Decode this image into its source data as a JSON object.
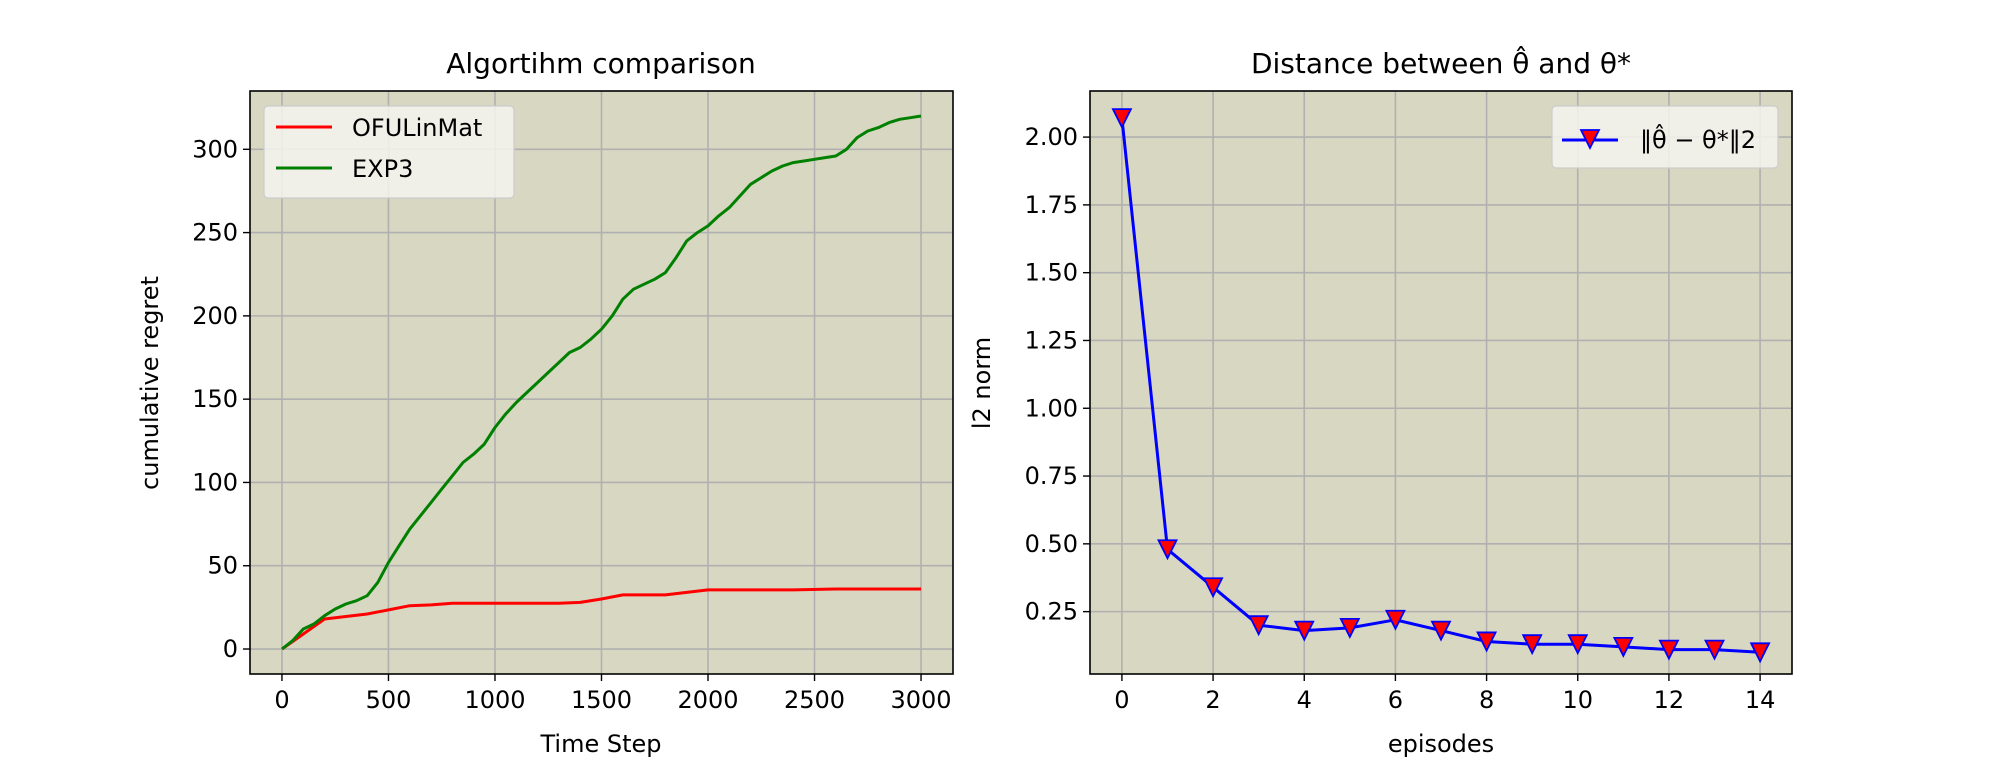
{
  "chart_data": [
    {
      "type": "line",
      "title": "Algortihm comparison",
      "xlabel": "Time Step",
      "ylabel": "cumulative regret",
      "xlim": [
        -150,
        3150
      ],
      "ylim": [
        -15,
        335
      ],
      "xticks": [
        0,
        500,
        1000,
        1500,
        2000,
        2500,
        3000
      ],
      "yticks": [
        0,
        50,
        100,
        150,
        200,
        250,
        300
      ],
      "grid": true,
      "background": "#d8d7c2",
      "legend_position": "upper-left",
      "series": [
        {
          "name": "OFULinMat",
          "color": "#ff0000",
          "x": [
            0,
            100,
            200,
            300,
            400,
            500,
            600,
            700,
            800,
            900,
            1000,
            1100,
            1200,
            1300,
            1400,
            1500,
            1600,
            1700,
            1800,
            1900,
            2000,
            2200,
            2400,
            2600,
            2800,
            3000
          ],
          "y": [
            0,
            9,
            18,
            19.5,
            21,
            23.5,
            26,
            26.5,
            27.5,
            27.5,
            27.5,
            27.5,
            27.5,
            27.5,
            28,
            30,
            32.5,
            32.5,
            32.5,
            34,
            35.5,
            35.5,
            35.5,
            36,
            36,
            36
          ]
        },
        {
          "name": "EXP3",
          "color": "#008000",
          "x": [
            0,
            50,
            100,
            150,
            200,
            250,
            300,
            350,
            400,
            450,
            500,
            550,
            600,
            650,
            700,
            750,
            800,
            850,
            900,
            950,
            1000,
            1050,
            1100,
            1150,
            1200,
            1250,
            1300,
            1350,
            1400,
            1450,
            1500,
            1550,
            1600,
            1650,
            1700,
            1750,
            1800,
            1850,
            1900,
            1950,
            2000,
            2050,
            2100,
            2150,
            2200,
            2250,
            2300,
            2350,
            2400,
            2450,
            2500,
            2550,
            2600,
            2650,
            2700,
            2750,
            2800,
            2850,
            2900,
            2950,
            3000
          ],
          "y": [
            0,
            5,
            12,
            15,
            20,
            24,
            27,
            29,
            32,
            40,
            52,
            62,
            72,
            80,
            88,
            96,
            104,
            112,
            117,
            123,
            133,
            141,
            148,
            154,
            160,
            166,
            172,
            178,
            181,
            186,
            192,
            200,
            210,
            216,
            219,
            222,
            226,
            235,
            245,
            250,
            254,
            260,
            265,
            272,
            279,
            283,
            287,
            290,
            292,
            293,
            294,
            295,
            296,
            300,
            307,
            311,
            313,
            316,
            318,
            319,
            320
          ]
        }
      ]
    },
    {
      "type": "line",
      "title": "Distance between θ̂ and θ*",
      "xlabel": "episodes",
      "ylabel": "l2 norm",
      "xlim": [
        -0.7,
        14.7
      ],
      "ylim": [
        0.02,
        2.17
      ],
      "xticks": [
        0,
        2,
        4,
        6,
        8,
        10,
        12,
        14
      ],
      "yticks": [
        0.25,
        0.5,
        0.75,
        1.0,
        1.25,
        1.5,
        1.75,
        2.0
      ],
      "ytick_labels": [
        "0.25",
        "0.50",
        "0.75",
        "1.00",
        "1.25",
        "1.50",
        "1.75",
        "2.00"
      ],
      "grid": true,
      "background": "#d8d7c2",
      "legend_position": "upper-right",
      "series": [
        {
          "name": "‖θ̂ − θ*‖2",
          "color": "#0000ff",
          "marker": "triangle-down",
          "marker_fill": "#ff0000",
          "x": [
            0,
            1,
            2,
            3,
            4,
            5,
            6,
            7,
            8,
            9,
            10,
            11,
            12,
            13,
            14
          ],
          "y": [
            2.07,
            0.48,
            0.34,
            0.2,
            0.18,
            0.19,
            0.22,
            0.18,
            0.14,
            0.13,
            0.13,
            0.12,
            0.11,
            0.11,
            0.1
          ]
        }
      ]
    }
  ]
}
